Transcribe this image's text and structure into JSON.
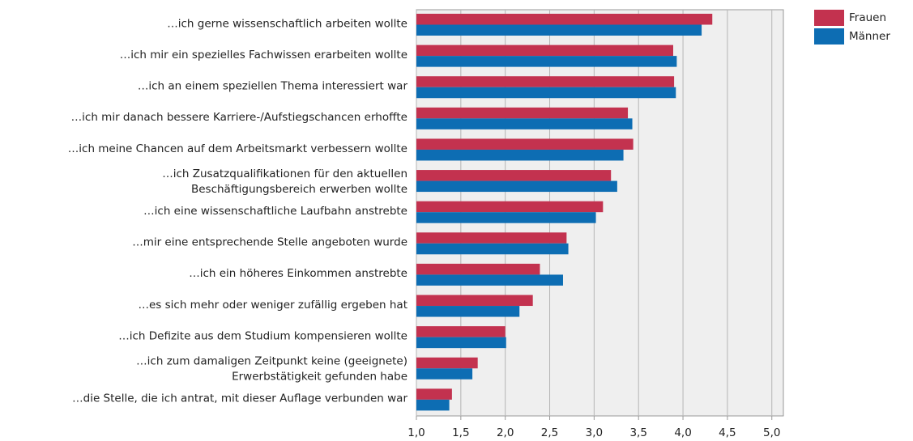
{
  "chart_data": {
    "type": "hbar",
    "categories": [
      "…ich gerne wissenschaftlich arbeiten wollte",
      "…ich mir ein spezielles Fachwissen erarbeiten wollte",
      "…ich an einem speziellen Thema interessiert war",
      "…ich mir danach bessere Karriere-/Aufstiegschancen erhoffte",
      "…ich meine Chancen auf dem Arbeitsmarkt verbessern wollte",
      [
        "…ich Zusatzqualifikationen für den aktuellen",
        "Beschäftigungsbereich erwerben wollte"
      ],
      "…ich eine wissenschaftliche Laufbahn anstrebte",
      "…mir eine entsprechende Stelle angeboten wurde",
      "…ich ein höheres Einkommen anstrebte",
      "…es sich mehr oder weniger zufällig ergeben hat",
      "…ich Defizite aus dem Studium kompensieren wollte",
      [
        "…ich zum damaligen Zeitpunkt keine (geeignete)",
        "Erwerbstätigkeit gefunden habe"
      ],
      "…die Stelle, die ich antrat, mit dieser Auflage verbunden war"
    ],
    "series": [
      {
        "name": "Frauen",
        "color": "#c3324f",
        "values": [
          4.33,
          3.89,
          3.9,
          3.38,
          3.44,
          3.19,
          3.1,
          2.69,
          2.39,
          2.31,
          2.0,
          1.69,
          1.4
        ]
      },
      {
        "name": "Männer",
        "color": "#0d6db3",
        "values": [
          4.21,
          3.93,
          3.92,
          3.43,
          3.33,
          3.26,
          3.02,
          2.71,
          2.65,
          2.16,
          2.01,
          1.63,
          1.37
        ]
      }
    ],
    "xlim": [
      1,
      5.13
    ],
    "xticks": [
      {
        "value": 1,
        "label": "1,0"
      },
      {
        "value": 1.5,
        "label": "1,5"
      },
      {
        "value": 2,
        "label": "2,0"
      },
      {
        "value": 2.5,
        "label": "2,5"
      },
      {
        "value": 3,
        "label": "3,0"
      },
      {
        "value": 3.5,
        "label": "3,5"
      },
      {
        "value": 4,
        "label": "4,0"
      },
      {
        "value": 4.5,
        "label": "4,5"
      },
      {
        "value": 5,
        "label": "5,0"
      }
    ],
    "grid": true,
    "legend": "top-right"
  }
}
